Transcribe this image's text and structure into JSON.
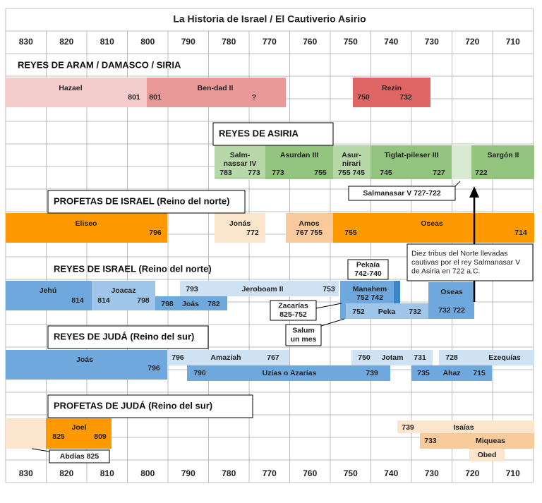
{
  "header": {
    "title": "La Historia de Israel / El Cautiverio Asirio"
  },
  "years": [
    830,
    820,
    810,
    800,
    790,
    780,
    770,
    760,
    750,
    740,
    730,
    720,
    710
  ],
  "headings": [
    "REYES DE ARAM / DAMASCO / SIRIA",
    "REYES DE ASIRIA",
    "PROFETAS DE ISRAEL (Reino del norte)",
    "REYES DE ISRAEL (Reino del norte)",
    "REYES DE JUDÁ (Reino del sur)",
    "PROFETAS DE JUDÁ (Reino del sur)"
  ],
  "bars": [
    [
      "Hazael",
      "801"
    ],
    [
      "801",
      "Ben-dad II",
      "?"
    ],
    [
      "Rezin",
      "750",
      "732"
    ],
    [
      "Salm-",
      "nassar IV",
      "783",
      "773"
    ],
    [
      "Asurdan III",
      "773",
      "755"
    ],
    [
      "Asur-",
      "nirari",
      "755 745"
    ],
    [
      "Tiglat-pileser III",
      "745",
      "727"
    ],
    [
      "Sargón II",
      "722"
    ],
    [
      "Eliseo",
      "796"
    ],
    [
      "Jonás",
      "772"
    ],
    [
      "Amos",
      "767 755"
    ],
    [
      "755",
      "Oseas",
      "714"
    ],
    [
      "Jehú",
      "814"
    ],
    [
      "Joacaz",
      "814",
      "798"
    ],
    [
      "793",
      "Jeroboam II",
      "753"
    ],
    [
      "798",
      "Joás",
      "782"
    ],
    [
      "Manahem",
      "752 742"
    ],
    [
      "752",
      "Peka",
      "732"
    ],
    [
      "Oseas",
      "732 722"
    ],
    [
      "Joás",
      "796"
    ],
    [
      "796",
      "Amaziah",
      "767"
    ],
    [
      "790",
      "Uzías o Azarías",
      "739"
    ],
    [
      "750",
      "Jotam",
      "731"
    ],
    [
      "728",
      "Ezequías"
    ],
    [
      "735",
      "Ahaz",
      "715"
    ],
    [
      "Joel",
      "825",
      "809"
    ],
    [
      "739",
      "Isaías"
    ],
    [
      "733",
      "Miqueas"
    ],
    [
      "Obed"
    ]
  ],
  "callouts": [
    [
      "Salmanasar V 727-722"
    ],
    [
      "Pekaía",
      "742-740"
    ],
    [
      "Zacarías",
      "825-752"
    ],
    [
      "Salum",
      "un mes"
    ],
    [
      "Diez tribus del Norte llevadas",
      "cautivas por el rey Salmanasar V",
      "de Asiria en 722 a.C."
    ],
    [
      "Abdías 825"
    ]
  ]
}
